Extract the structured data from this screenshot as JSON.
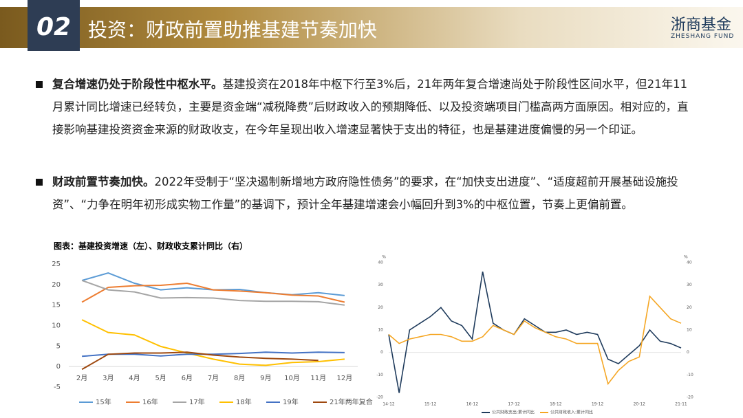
{
  "header": {
    "number": "02",
    "title": "投资：财政前置助推基建节奏加快",
    "logo": "浙商基金",
    "logo_en": "ZHESHANG FUND"
  },
  "bullets": [
    {
      "lead": "复合增速仍处于阶段性中枢水平。",
      "text": "基建投资在2018年中枢下行至3%后，21年两年复合增速尚处于阶段性区间水平，但21年11月累计同比增速已经转负，主要是资金端“减税降费”后财政收入的预期降低、以及投资端项目门槛高两方面原因。相对应的，直接影响基建投资资金来源的财政收支，在今年呈现出收入增速显著快于支出的特征，也是基建进度偏慢的另一个印证。"
    },
    {
      "lead": "财政前置节奏加快。",
      "text": "2022年受制于“坚决遏制新增地方政府隐性债务”的要求，在“加快支出进度”、“适度超前开展基础设施投资”、“力争在明年初形成实物工作量”的基调下，预计全年基建增速会小幅回升到3%的中枢位置，节奏上更偏前置。"
    }
  ],
  "figure_title": "图表：基建投资增速（左）、财政收支累计同比（右）",
  "chart_data": [
    {
      "type": "line",
      "categories": [
        "2月",
        "3月",
        "4月",
        "5月",
        "6月",
        "7月",
        "8月",
        "9月",
        "10月",
        "11月",
        "12月"
      ],
      "ylim": [
        -5,
        25
      ],
      "yticks": [
        -5,
        0,
        5,
        10,
        15,
        20,
        25
      ],
      "series": [
        {
          "name": "15年",
          "color": "#5b9bd5",
          "values": [
            21,
            22.8,
            20.3,
            18.7,
            19.2,
            18.7,
            18.8,
            18.0,
            17.5,
            18.0,
            17.3
          ]
        },
        {
          "name": "16年",
          "color": "#ed7d31",
          "values": [
            15.7,
            19.3,
            19.7,
            19.8,
            20.3,
            18.7,
            18.4,
            18.0,
            17.4,
            17.2,
            15.7
          ]
        },
        {
          "name": "17年",
          "color": "#a5a5a5",
          "values": [
            21,
            18.7,
            18.2,
            16.7,
            16.8,
            16.7,
            16.1,
            15.9,
            15.9,
            15.8,
            15.0
          ]
        },
        {
          "name": "18年",
          "color": "#ffc000",
          "values": [
            11.4,
            8.3,
            7.7,
            4.9,
            3.3,
            1.8,
            0.6,
            0.3,
            1.0,
            1.2,
            1.8
          ]
        },
        {
          "name": "19年",
          "color": "#4472c4",
          "values": [
            2.5,
            3.0,
            3.0,
            2.6,
            3.0,
            3.0,
            3.2,
            3.5,
            3.3,
            3.5,
            3.4
          ]
        },
        {
          "name": "21年两年复合",
          "color": "#9e480e",
          "values": [
            -0.7,
            3.0,
            3.3,
            3.3,
            3.5,
            2.8,
            2.3,
            2.0,
            1.8,
            1.5,
            null
          ]
        }
      ]
    },
    {
      "type": "line",
      "categories": [
        "14-12",
        null,
        null,
        null,
        "15-12",
        null,
        null,
        null,
        "16-12",
        null,
        null,
        null,
        "17-12",
        null,
        null,
        null,
        "18-12",
        null,
        null,
        null,
        "19-12",
        null,
        null,
        null,
        "20-12",
        null,
        null,
        null,
        "21-11"
      ],
      "ylabel": "%",
      "y2label": "%",
      "ylim": [
        -20,
        40
      ],
      "yticks": [
        -20,
        -10,
        0,
        10,
        20,
        30,
        40
      ],
      "y2lim": [
        -20,
        40
      ],
      "y2ticks": [
        -20,
        -10,
        0,
        10,
        20,
        30,
        40
      ],
      "series": [
        {
          "name": "公共财政支出:累计同比",
          "color": "#1f3b5c",
          "values": [
            8,
            -18,
            10,
            13,
            16,
            20,
            14,
            12,
            6,
            36,
            13,
            10,
            8,
            15,
            12,
            9,
            9,
            10,
            8,
            9,
            8,
            -3,
            -5,
            -1,
            3,
            10,
            5,
            4,
            2
          ]
        },
        {
          "name": "公共财政收入:累计同比",
          "color": "#f5a623",
          "axis": "y2",
          "values": [
            8,
            4,
            6,
            7,
            8,
            8,
            7,
            5,
            5,
            7,
            12,
            10,
            8,
            14,
            11,
            9,
            7,
            6,
            4,
            4,
            4,
            -14,
            -8,
            -4,
            -2,
            25,
            20,
            15,
            13
          ]
        }
      ]
    }
  ]
}
